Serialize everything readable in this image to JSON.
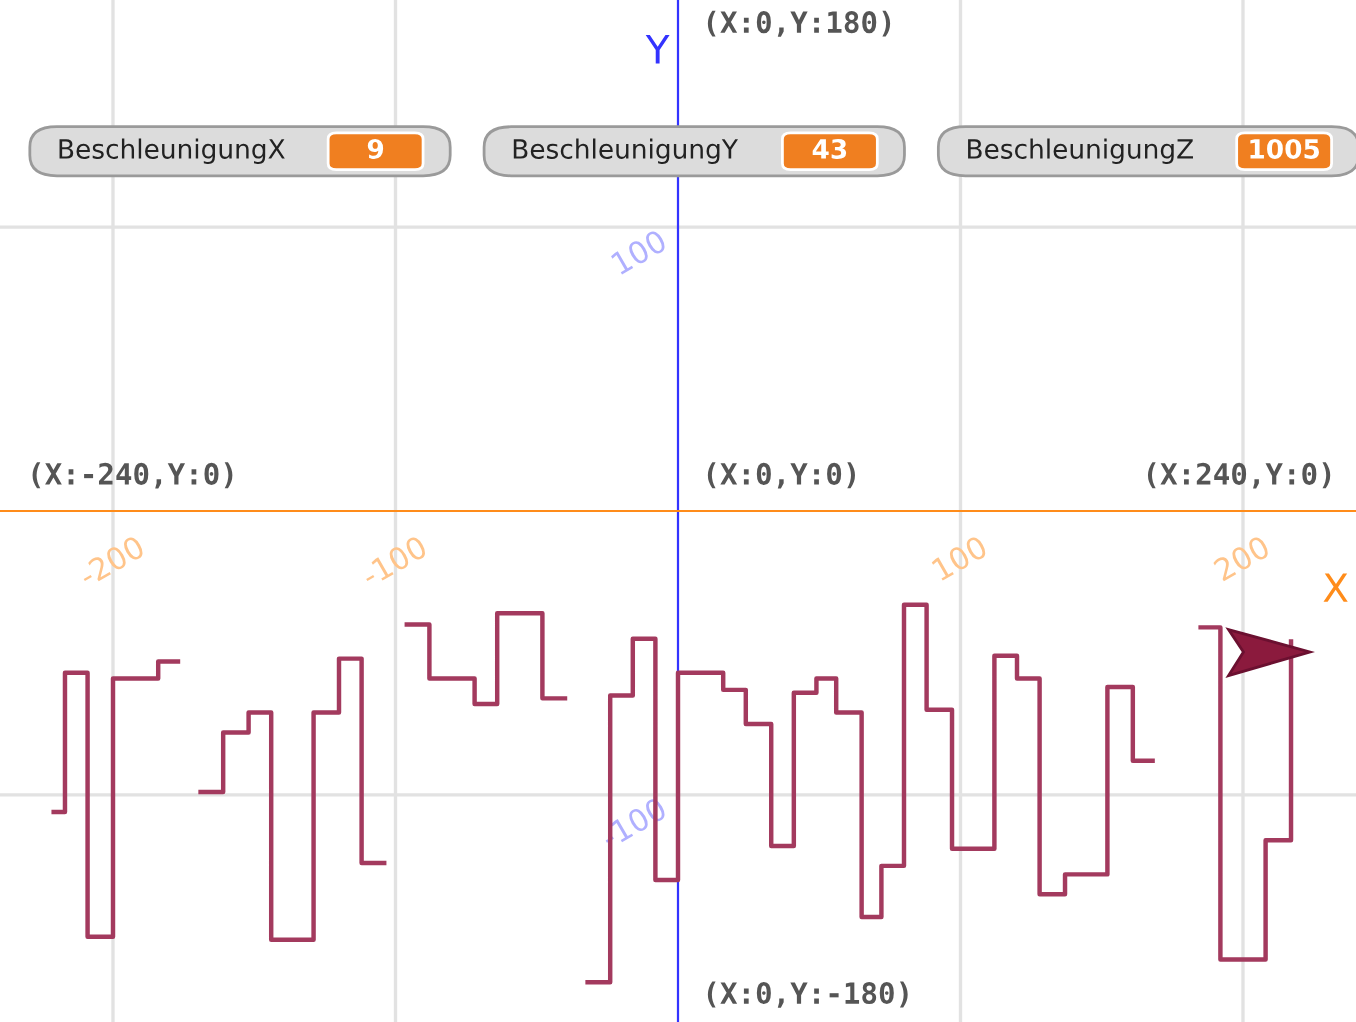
{
  "chart_data": {
    "type": "step",
    "xlabel": "X",
    "ylabel": "Y",
    "xlim": [
      -240,
      240
    ],
    "ylim": [
      -180,
      180
    ],
    "xticks": [
      -200,
      -100,
      100,
      200
    ],
    "yticks": [
      -100,
      100
    ],
    "grid": true,
    "series": [
      {
        "color": "#a33a5e",
        "x": [
          -221,
          -217,
          -209,
          -200,
          -184,
          -177,
          -169,
          -161,
          -152,
          -144,
          -129,
          -120,
          -112,
          -104,
          -96,
          -88,
          -72,
          -64,
          -48,
          -40,
          -32,
          -24,
          -16,
          -8,
          0,
          16,
          24,
          33,
          41,
          49,
          56,
          65,
          72,
          80,
          88,
          97,
          112,
          120,
          128,
          137,
          152,
          161,
          168,
          185,
          192,
          208,
          217
        ],
        "values": [
          -106,
          -57,
          -150,
          -59,
          -53,
          null,
          -99,
          -78,
          -71,
          -151,
          -71,
          -52,
          -124,
          null,
          -40,
          -59,
          -68,
          -36,
          -66,
          null,
          -166,
          -65,
          -45,
          -130,
          -57,
          -63,
          -75,
          -118,
          -64,
          -59,
          -71,
          -143,
          -125,
          -33,
          -70,
          -119,
          -51,
          -59,
          -135,
          -128,
          -62,
          -88,
          null,
          -41,
          -158,
          -116,
          -46
        ]
      }
    ],
    "annotations": [
      "(X:0,Y:180)",
      "(X:-240,Y:0)",
      "(X:0,Y:0)",
      "(X:240,Y:0)",
      "(X:0,Y:-180)",
      "BeschleunigungX",
      "9",
      "BeschleunigungY",
      "43",
      "BeschleunigungZ",
      "1005"
    ]
  }
}
